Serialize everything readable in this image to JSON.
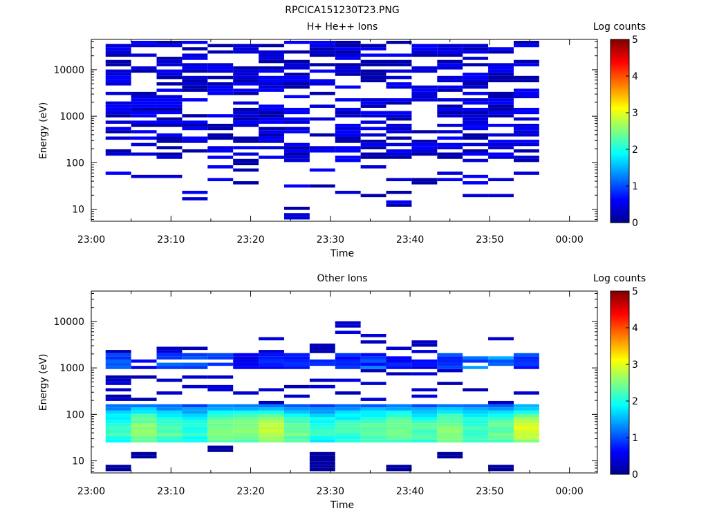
{
  "figure_title": "RPCICA151230T23.PNG",
  "colors": {
    "background": "#ffffff",
    "axis": "#000000",
    "colormap": [
      "#00008f",
      "#0000ff",
      "#0080ff",
      "#00ffff",
      "#80ff80",
      "#ffff00",
      "#ff8000",
      "#ff0000",
      "#800000"
    ]
  },
  "chart_data": [
    {
      "type": "heatmap",
      "title": "H+ He++ Ions",
      "xlabel": "Time",
      "ylabel": "Energy (eV)",
      "x_ticks": [
        "23:00",
        "23:10",
        "23:20",
        "23:30",
        "23:40",
        "23:50",
        "00:00"
      ],
      "x_range_minutes": [
        0,
        63.5
      ],
      "y_scale": "log",
      "y_ticks": [
        "10",
        "100",
        "1000",
        "10000"
      ],
      "y_range": [
        5.5,
        45000
      ],
      "colorbar": {
        "label": "Log counts",
        "range": [
          0,
          5
        ],
        "ticks": [
          "0",
          "1",
          "2",
          "3",
          "4",
          "5"
        ]
      },
      "time_bin_start_minutes": [
        1.8,
        5.0,
        8.2,
        11.4,
        14.6,
        17.8,
        21.0,
        24.2,
        27.4,
        30.6,
        33.8,
        37.0,
        40.2,
        43.4,
        46.6,
        49.8,
        53.0
      ],
      "time_bin_width_minutes": 3.2,
      "energy_range_eV": [
        6,
        42000
      ],
      "energy_bins": 56,
      "filled_fraction": [
        0.55,
        0.58,
        0.6,
        0.57,
        0.6,
        0.56,
        0.62,
        0.6,
        0.55,
        0.58,
        0.57,
        0.6,
        0.56,
        0.58,
        0.62,
        0.57,
        0.55
      ],
      "count_level_log10": [
        0.15,
        0.4,
        0.6
      ],
      "low_energy_limit_eV": [
        20,
        30,
        15,
        8,
        30,
        16,
        30,
        6,
        28,
        16,
        10,
        10,
        30,
        30,
        6,
        10,
        40
      ],
      "low_energy_sparse_above_eV": 120
    },
    {
      "type": "heatmap",
      "title": "Other Ions",
      "xlabel": "Time",
      "ylabel": "Energy (eV)",
      "x_ticks": [
        "23:00",
        "23:10",
        "23:20",
        "23:30",
        "23:40",
        "23:50",
        "00:00"
      ],
      "x_range_minutes": [
        0,
        63.5
      ],
      "y_scale": "log",
      "y_ticks": [
        "10",
        "100",
        "1000",
        "10000"
      ],
      "y_range": [
        5.5,
        45000
      ],
      "colorbar": {
        "label": "Log counts",
        "range": [
          0,
          5
        ],
        "ticks": [
          "0",
          "1",
          "2",
          "3",
          "4",
          "5"
        ]
      },
      "time_bin_start_minutes": [
        1.8,
        5.0,
        8.2,
        11.4,
        14.6,
        17.8,
        21.0,
        24.2,
        27.4,
        30.6,
        33.8,
        37.0,
        40.2,
        43.4,
        46.6,
        49.8,
        53.0
      ],
      "time_bin_width_minutes": 3.2,
      "band_energy_eV": [
        22,
        160
      ],
      "band_peak_eV": 45,
      "band_peak_log10": [
        2.2,
        2.6,
        2.3,
        2.1,
        2.5,
        2.6,
        2.8,
        2.4,
        2.1,
        2.2,
        2.4,
        2.5,
        2.3,
        2.6,
        2.2,
        2.4,
        2.9
      ],
      "high_energy_band_eV": [
        900,
        2000
      ],
      "high_energy_band_log10": [
        1.2,
        0.8,
        1.3,
        1.0,
        1.1,
        0.6,
        0.7,
        1.0,
        0.9,
        0.8,
        1.1,
        0.8,
        0.7,
        1.0,
        1.2,
        1.3,
        1.0
      ],
      "high_energy_sparse_max_eV": [
        3000,
        4500,
        3500,
        4000,
        2500,
        2000,
        6500,
        2200,
        4500,
        14000,
        5500,
        5500,
        4500,
        2000,
        4000,
        7000,
        1700
      ],
      "low_energy_blocks_eV": [
        [
          6,
          9
        ],
        [
          11,
          15
        ],
        [
          0,
          0
        ],
        [
          0,
          0
        ],
        [
          15,
          21
        ],
        [
          0,
          0
        ],
        [
          0,
          0
        ],
        [
          0,
          0
        ],
        [
          6,
          15
        ],
        [
          0,
          0
        ],
        [
          0,
          0
        ],
        [
          6,
          9
        ],
        [
          0,
          0
        ],
        [
          11,
          15
        ],
        [
          0,
          0
        ],
        [
          6,
          9
        ],
        [
          0,
          0
        ]
      ]
    }
  ]
}
